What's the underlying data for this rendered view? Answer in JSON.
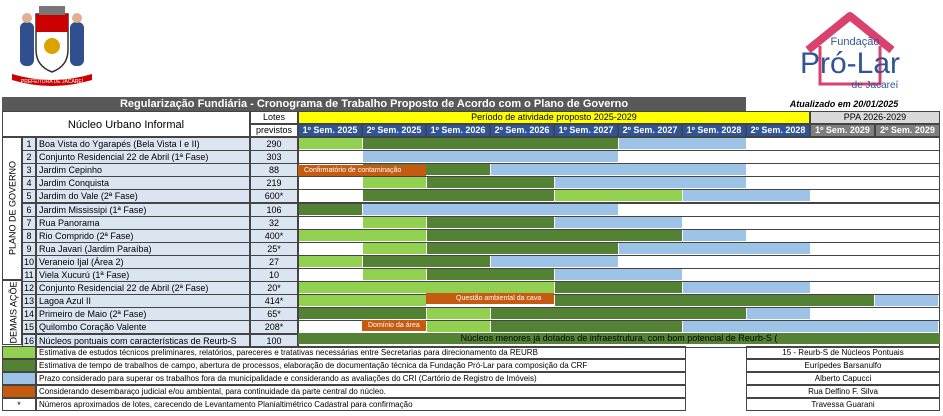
{
  "colors": {
    "light_green": "#92d050",
    "dark_green": "#548235",
    "light_blue": "#9dc3e6",
    "orange": "#c55a11",
    "header_blue": "#2f5597",
    "yellow": "#ffff00",
    "gray": "#595959"
  },
  "logos": {
    "left_city_banner": "PREFEITURA DE JACAREÍ",
    "fundacao_line1": "Fundação",
    "fundacao_line2": "Pró-Lar",
    "fundacao_line3": "de Jacareí"
  },
  "header": {
    "title": "Regularização Fundiária - Cronograma de Trabalho Proposto de Acordo com o Plano de Governo",
    "updated": "Atualizado em 20/01/2025",
    "nucleo_col": "Núcleo Urbano Informal",
    "lotes_col_1": "Lotes",
    "lotes_col_2": "previstos",
    "period_label": "Período de atividade proposto 2025-2029",
    "ppa_label": "PPA 2026-2029"
  },
  "semesters": [
    "1º Sem. 2025",
    "2º Sem. 2025",
    "1º Sem. 2026",
    "2º Sem. 2026",
    "1º Sem. 2027",
    "2º Sem. 2027",
    "1º Sem. 2028",
    "2º Sem. 2028",
    "1º Sem. 2029",
    "2º Sem. 2029"
  ],
  "groups": {
    "plano": "PLANO DE GOVERNO",
    "demais": "DEMAIS AÇÕES"
  },
  "rows": [
    {
      "n": "1",
      "name": "Boa Vista do Ygarapés (Bela Vista I e II)",
      "lotes": "290"
    },
    {
      "n": "2",
      "name": "Conjunto Residencial 22 de Abril (1ª Fase)",
      "lotes": "303"
    },
    {
      "n": "3",
      "name": "Jardim Cepinho",
      "lotes": "88"
    },
    {
      "n": "4",
      "name": "Jardim Conquista",
      "lotes": "219"
    },
    {
      "n": "5",
      "name": "Jardim do Vale (2ª Fase)",
      "lotes": "600*"
    },
    {
      "n": "6",
      "name": "Jardim Mississipi (1ª Fase)",
      "lotes": "106"
    },
    {
      "n": "7",
      "name": "Rua Panorama",
      "lotes": "32"
    },
    {
      "n": "8",
      "name": "Rio Comprido (2ª Fase)",
      "lotes": "400*"
    },
    {
      "n": "9",
      "name": "Rua Javari (Jardim Paraíba)",
      "lotes": "25*"
    },
    {
      "n": "10",
      "name": "Veraneio Ijal (Área 2)",
      "lotes": "27"
    },
    {
      "n": "11",
      "name": "Viela Xucurú (1ª Fase)",
      "lotes": "10"
    },
    {
      "n": "12",
      "name": "Conjunto Residencial 22 de Abril (2ª Fase)",
      "lotes": "20*"
    },
    {
      "n": "13",
      "name": "Lagoa Azul II",
      "lotes": "414*"
    },
    {
      "n": "14",
      "name": "Primeiro de Maio (2ª Fase)",
      "lotes": "65*"
    },
    {
      "n": "15",
      "name": "Quilombo Coração Valente",
      "lotes": "208*"
    },
    {
      "n": "16",
      "name": "Núcleos pontuais com características de Reurb-S",
      "lotes": "100"
    }
  ],
  "bar_notes": {
    "contaminacao": "Confirmatório de contaminação",
    "ambiental": "Questão ambiental da cava",
    "dominio": "Domínio da área",
    "row16": "Núcleos menores já dotados de infraestrutura, com bom potencial de Reurb-S ("
  },
  "legend": [
    "Estimativa de estudos técnicos preliminares, relatórios, pareceres e tratativas necessárias entre Secretarias para direcionamento da REURB",
    "Estimativa de tempo de trabalhos de campo, abertura de processos, elaboração de documentação técnica da Fundação Pró-Lar para composição da CRF",
    "Prazo considerado para superar os trabalhos fora da municipalidade e considerando as avaliações do CRI (Cartório de Registro de Imóveis)",
    "Considerando desembaraço judicial e/ou ambiental, para continuidade da parte central do núcleo.",
    "Números aproximados de lotes, carecendo de Levantamento Planialtimétrico Cadastral para confirmação"
  ],
  "legend_star": "*",
  "side_list": [
    "15 - Reurb-S de Núcleos Pontuais",
    "Eurípedes Barsanulfo",
    "Alberto Capucci",
    "Rua Delfino F. Silva",
    "Travessa Guarani"
  ]
}
